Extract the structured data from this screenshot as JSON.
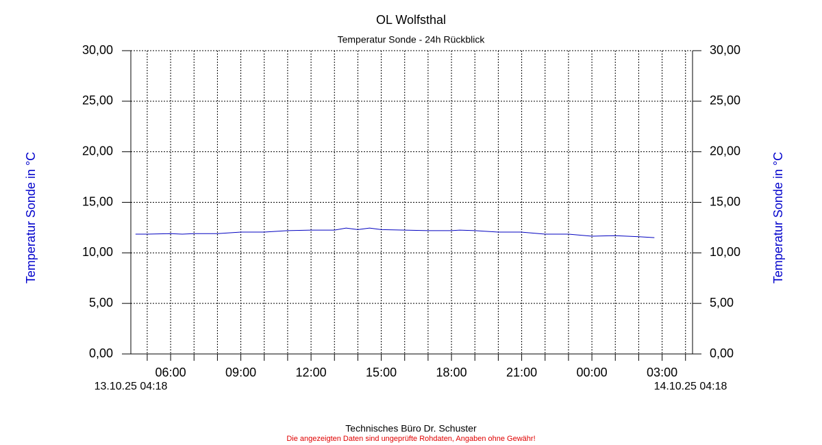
{
  "chart_data": {
    "type": "line",
    "title": "OL Wolfsthal",
    "subtitle": "Temperatur Sonde - 24h Rückblick",
    "y_label": "Temperatur Sonde in °C",
    "start_label": "13.10.25 04:18",
    "end_label": "14.10.25 04:18",
    "footer": "Technisches Büro Dr. Schuster",
    "disclaimer": "Die angezeigten Daten sind ungeprüfte Rohdaten, Angaben ohne Gewähr!",
    "xlim": [
      4.3,
      28.3
    ],
    "xticks": [
      {
        "value": 6,
        "label": "06:00"
      },
      {
        "value": 9,
        "label": "09:00"
      },
      {
        "value": 12,
        "label": "12:00"
      },
      {
        "value": 15,
        "label": "15:00"
      },
      {
        "value": 18,
        "label": "18:00"
      },
      {
        "value": 21,
        "label": "21:00"
      },
      {
        "value": 24,
        "label": "00:00"
      },
      {
        "value": 27,
        "label": "03:00"
      }
    ],
    "xminor": [
      5,
      7,
      8,
      10,
      11,
      13,
      14,
      16,
      17,
      19,
      20,
      22,
      23,
      25,
      26,
      28
    ],
    "ylim": [
      0,
      30
    ],
    "yticks": [
      {
        "value": 0,
        "label": "0,00"
      },
      {
        "value": 5,
        "label": "5,00"
      },
      {
        "value": 10,
        "label": "10,00"
      },
      {
        "value": 15,
        "label": "15,00"
      },
      {
        "value": 20,
        "label": "20,00"
      },
      {
        "value": 25,
        "label": "25,00"
      },
      {
        "value": 30,
        "label": "30,00"
      }
    ],
    "grid": true,
    "x": [
      4.5,
      5,
      6,
      6.5,
      7,
      8,
      9,
      10,
      11,
      12,
      13,
      13.5,
      14,
      14.5,
      15,
      16,
      17,
      18,
      18.35,
      19,
      20,
      21,
      22,
      23,
      24,
      25,
      26,
      26.67
    ],
    "series": [
      {
        "color": "#0000c0",
        "values": [
          11.85,
          11.85,
          11.9,
          11.85,
          11.9,
          11.9,
          12.05,
          12.05,
          12.2,
          12.25,
          12.25,
          12.45,
          12.3,
          12.45,
          12.3,
          12.25,
          12.2,
          12.2,
          12.25,
          12.2,
          12.05,
          12.05,
          11.85,
          11.85,
          11.65,
          11.7,
          11.6,
          11.5
        ]
      }
    ]
  }
}
